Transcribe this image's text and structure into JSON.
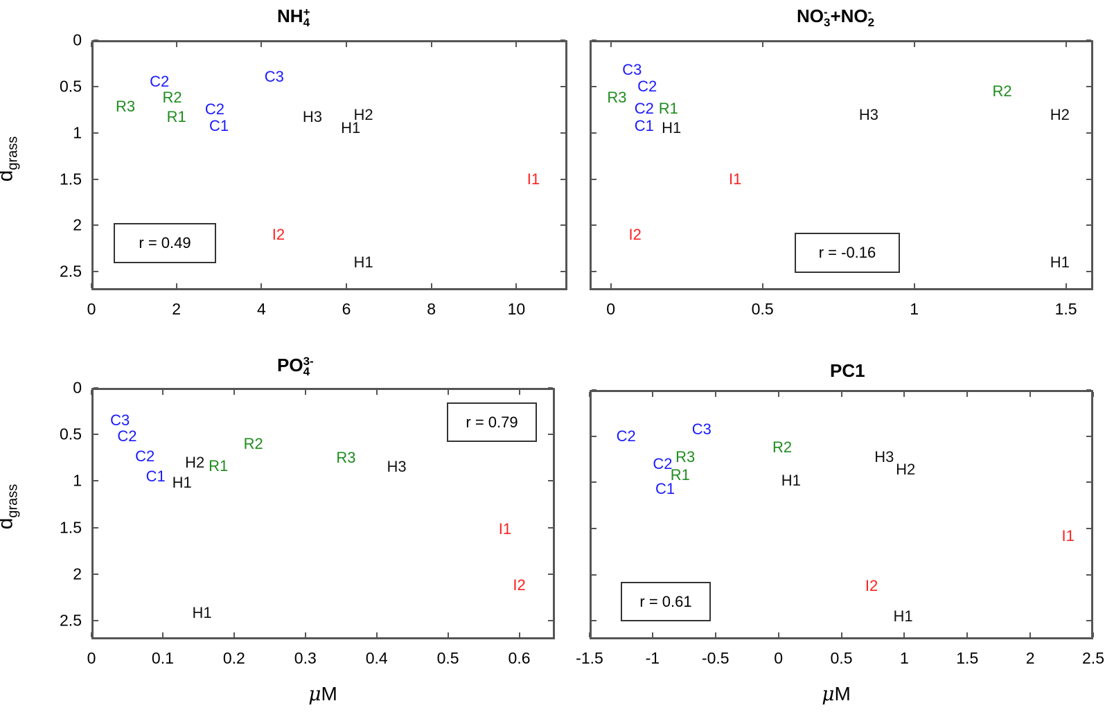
{
  "colors": {
    "C": "#1a1aff",
    "R": "#1e8c1e",
    "H": "#111111",
    "I": "#ff2020",
    "axis": "#555555"
  },
  "ylabel": {
    "main": "d",
    "sub": "grass"
  },
  "xlabel": {
    "mu": "μ",
    "unit": "M"
  },
  "chart_data": [
    {
      "type": "scatter",
      "title": "NH4+",
      "title_parts": {
        "base": "NH",
        "sup": "+",
        "sub": "4"
      },
      "xlabel": "",
      "ylabel": "d_grass",
      "xlim": [
        0,
        11.2
      ],
      "ylim": [
        2.7,
        0
      ],
      "y_reversed": true,
      "xticks": [
        0,
        2,
        4,
        6,
        8,
        10
      ],
      "yticks": [
        0,
        0.5,
        1,
        1.5,
        2,
        2.5
      ],
      "annotation": "r = 0.49",
      "points": [
        {
          "label": "C2",
          "group": "C",
          "x": 1.6,
          "y": 0.45
        },
        {
          "label": "C3",
          "group": "C",
          "x": 4.3,
          "y": 0.4
        },
        {
          "label": "R3",
          "group": "R",
          "x": 0.8,
          "y": 0.72
        },
        {
          "label": "R2",
          "group": "R",
          "x": 1.9,
          "y": 0.62
        },
        {
          "label": "R1",
          "group": "R",
          "x": 2.0,
          "y": 0.83
        },
        {
          "label": "C2",
          "group": "C",
          "x": 2.9,
          "y": 0.75
        },
        {
          "label": "C1",
          "group": "C",
          "x": 3.0,
          "y": 0.93
        },
        {
          "label": "H3",
          "group": "H",
          "x": 5.2,
          "y": 0.83
        },
        {
          "label": "H2",
          "group": "H",
          "x": 6.4,
          "y": 0.81
        },
        {
          "label": "H1",
          "group": "H",
          "x": 6.1,
          "y": 0.95
        },
        {
          "label": "I1",
          "group": "I",
          "x": 10.4,
          "y": 1.5
        },
        {
          "label": "I2",
          "group": "I",
          "x": 4.4,
          "y": 2.1
        },
        {
          "label": "H1",
          "group": "H",
          "x": 6.4,
          "y": 2.4
        }
      ]
    },
    {
      "type": "scatter",
      "title": "NO3- + NO2-",
      "title_parts": {
        "a": "NO",
        "a_sup": "-",
        "a_sub": "3",
        "plus": "+",
        "b": "NO",
        "b_sup": "-",
        "b_sub": "2"
      },
      "xlabel": "",
      "ylabel": "",
      "xlim": [
        -0.07,
        1.59
      ],
      "ylim": [
        2.7,
        0
      ],
      "y_reversed": true,
      "xticks": [
        0,
        0.5,
        1,
        1.5
      ],
      "yticks": [
        0,
        0.5,
        1,
        1.5,
        2,
        2.5
      ],
      "annotation": "r = -0.16",
      "points": [
        {
          "label": "C3",
          "group": "C",
          "x": 0.07,
          "y": 0.32
        },
        {
          "label": "C2",
          "group": "C",
          "x": 0.12,
          "y": 0.5
        },
        {
          "label": "R3",
          "group": "R",
          "x": 0.02,
          "y": 0.62
        },
        {
          "label": "C2",
          "group": "C",
          "x": 0.11,
          "y": 0.74
        },
        {
          "label": "R1",
          "group": "R",
          "x": 0.19,
          "y": 0.74
        },
        {
          "label": "C1",
          "group": "C",
          "x": 0.11,
          "y": 0.93
        },
        {
          "label": "H1",
          "group": "H",
          "x": 0.2,
          "y": 0.95
        },
        {
          "label": "R2",
          "group": "R",
          "x": 1.29,
          "y": 0.55
        },
        {
          "label": "H3",
          "group": "H",
          "x": 0.85,
          "y": 0.81
        },
        {
          "label": "H2",
          "group": "H",
          "x": 1.48,
          "y": 0.81
        },
        {
          "label": "I1",
          "group": "I",
          "x": 0.41,
          "y": 1.5
        },
        {
          "label": "I2",
          "group": "I",
          "x": 0.08,
          "y": 2.1
        },
        {
          "label": "H1",
          "group": "H",
          "x": 1.48,
          "y": 2.4
        }
      ]
    },
    {
      "type": "scatter",
      "title": "PO4 3-",
      "title_parts": {
        "base": "PO",
        "sup": "3-",
        "sub": "4"
      },
      "xlabel": "μM",
      "ylabel": "d_grass",
      "xlim": [
        0,
        0.65
      ],
      "ylim": [
        2.7,
        0
      ],
      "y_reversed": true,
      "xticks": [
        0,
        0.1,
        0.2,
        0.3,
        0.4,
        0.5,
        0.6
      ],
      "yticks": [
        0,
        0.5,
        1,
        1.5,
        2,
        2.5
      ],
      "annotation": "r = 0.79",
      "points": [
        {
          "label": "C3",
          "group": "C",
          "x": 0.04,
          "y": 0.35
        },
        {
          "label": "C2",
          "group": "C",
          "x": 0.05,
          "y": 0.52
        },
        {
          "label": "C2",
          "group": "C",
          "x": 0.075,
          "y": 0.74
        },
        {
          "label": "C1",
          "group": "C",
          "x": 0.09,
          "y": 0.95
        },
        {
          "label": "H2",
          "group": "H",
          "x": 0.145,
          "y": 0.8
        },
        {
          "label": "R1",
          "group": "R",
          "x": 0.178,
          "y": 0.84
        },
        {
          "label": "H1",
          "group": "H",
          "x": 0.127,
          "y": 1.02
        },
        {
          "label": "R2",
          "group": "R",
          "x": 0.227,
          "y": 0.6
        },
        {
          "label": "R3",
          "group": "R",
          "x": 0.357,
          "y": 0.75
        },
        {
          "label": "H3",
          "group": "H",
          "x": 0.428,
          "y": 0.85
        },
        {
          "label": "I1",
          "group": "I",
          "x": 0.58,
          "y": 1.52
        },
        {
          "label": "I2",
          "group": "I",
          "x": 0.6,
          "y": 2.12
        },
        {
          "label": "H1",
          "group": "H",
          "x": 0.155,
          "y": 2.42
        }
      ]
    },
    {
      "type": "scatter",
      "title": "PC1",
      "title_parts": {
        "base": "PC1"
      },
      "xlabel": "μM",
      "ylabel": "",
      "xlim": [
        -1.5,
        2.5
      ],
      "ylim": [
        2.7,
        0
      ],
      "y_reversed": true,
      "xticks": [
        -1.5,
        -1,
        -0.5,
        0,
        0.5,
        1,
        1.5,
        2,
        2.5
      ],
      "yticks": [
        0,
        0.5,
        1,
        1.5,
        2,
        2.5
      ],
      "annotation": "r = 0.61",
      "points": [
        {
          "label": "C2",
          "group": "C",
          "x": -1.21,
          "y": 0.5
        },
        {
          "label": "C3",
          "group": "C",
          "x": -0.61,
          "y": 0.43
        },
        {
          "label": "R2",
          "group": "R",
          "x": 0.03,
          "y": 0.62
        },
        {
          "label": "C2",
          "group": "C",
          "x": -0.92,
          "y": 0.8
        },
        {
          "label": "R3",
          "group": "R",
          "x": -0.74,
          "y": 0.73
        },
        {
          "label": "R1",
          "group": "R",
          "x": -0.78,
          "y": 0.92
        },
        {
          "label": "C1",
          "group": "C",
          "x": -0.9,
          "y": 1.07
        },
        {
          "label": "H1",
          "group": "H",
          "x": 0.1,
          "y": 0.98
        },
        {
          "label": "H3",
          "group": "H",
          "x": 0.84,
          "y": 0.73
        },
        {
          "label": "H2",
          "group": "H",
          "x": 1.01,
          "y": 0.86
        },
        {
          "label": "I1",
          "group": "I",
          "x": 2.3,
          "y": 1.58
        },
        {
          "label": "I2",
          "group": "I",
          "x": 0.74,
          "y": 2.12
        },
        {
          "label": "H1",
          "group": "H",
          "x": 0.99,
          "y": 2.45
        }
      ]
    }
  ]
}
